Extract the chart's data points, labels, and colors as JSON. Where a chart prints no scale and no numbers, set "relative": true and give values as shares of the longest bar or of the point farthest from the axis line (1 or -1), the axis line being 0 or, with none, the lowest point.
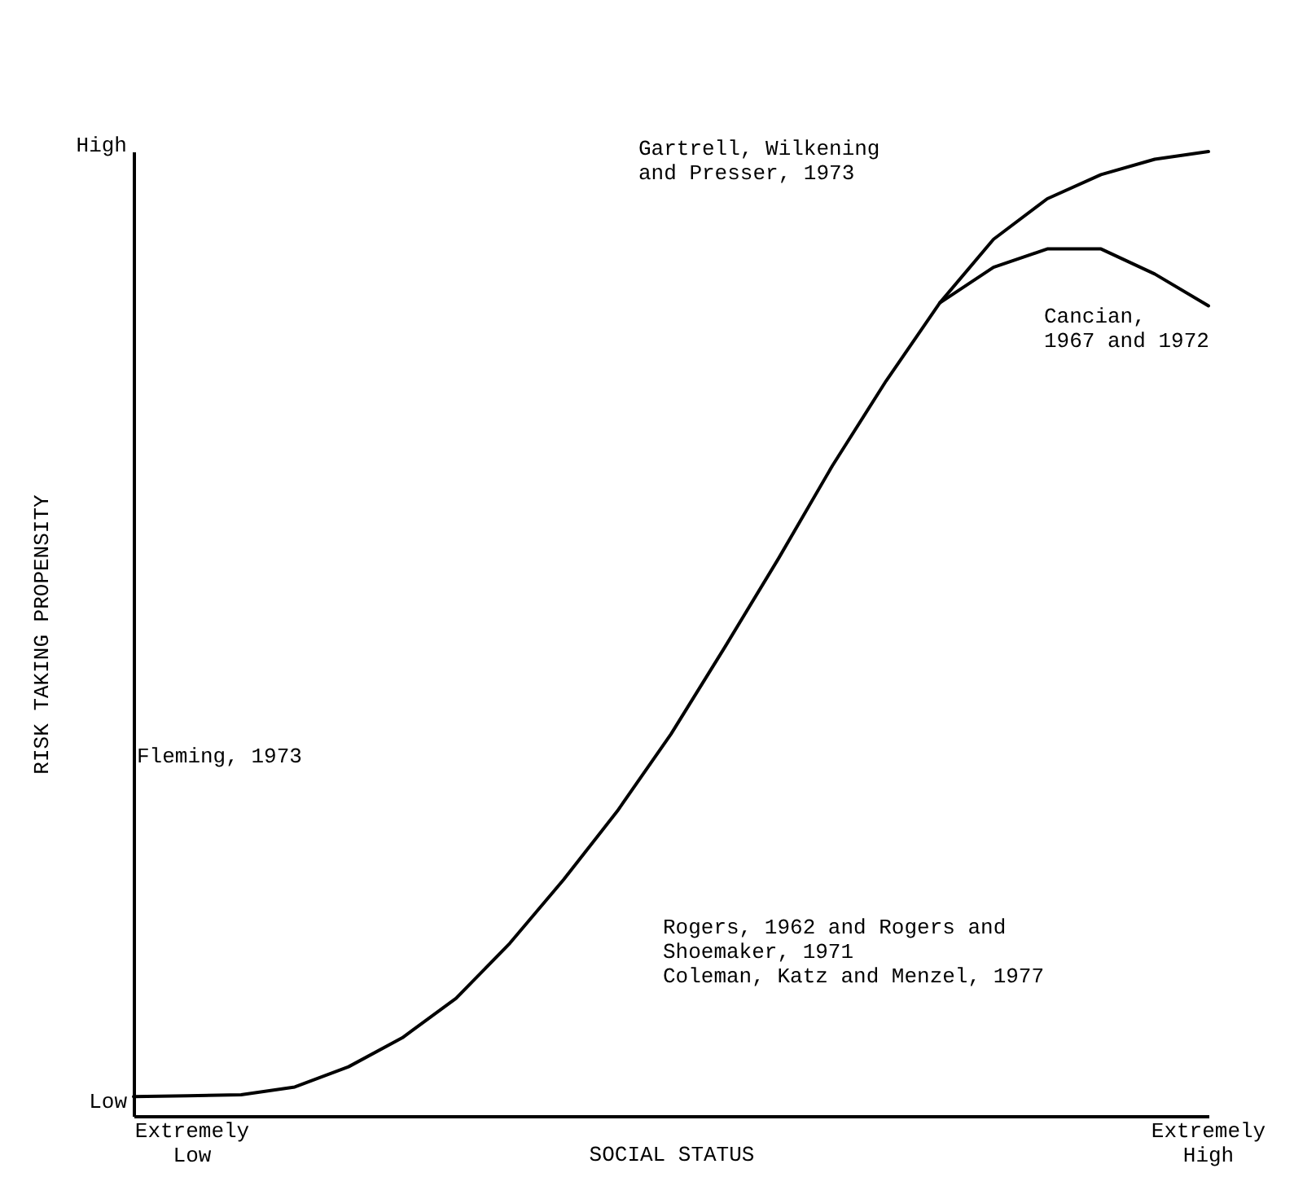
{
  "chart_data": {
    "type": "line",
    "xlabel": "SOCIAL STATUS",
    "ylabel": "RISK TAKING PROPENSITY",
    "relative": true,
    "categories": [
      null,
      null,
      null,
      null,
      null,
      null,
      null,
      null,
      null,
      null,
      null,
      null,
      null,
      null,
      null,
      null,
      null,
      null,
      null,
      null,
      null
    ],
    "series": [
      {
        "color": "#000000",
        "values": [
          0.02,
          0.021,
          0.022,
          0.03,
          0.051,
          0.081,
          0.122,
          0.179,
          0.245,
          0.316,
          0.396,
          0.486,
          0.578,
          0.674,
          0.762,
          0.843,
          0.909,
          0.951,
          0.976,
          0.992,
          1.0
        ]
      },
      {
        "color": "#000000",
        "values": [
          null,
          null,
          null,
          null,
          null,
          null,
          null,
          null,
          null,
          null,
          null,
          null,
          null,
          null,
          null,
          0.843,
          0.88,
          0.899,
          0.899,
          0.873,
          0.84
        ]
      }
    ],
    "annotations": [
      "Gartrell, Wilkening\nand Presser, 1973",
      "Cancian,\n1967 and 1972",
      "Rogers, 1962 and Rogers and\nShoemaker, 1971\nColeman, Katz and Menzel, 1977",
      "Fleming, 1973",
      "High",
      "Low",
      "Extremely\nLow",
      "Extremely\nHigh"
    ]
  }
}
